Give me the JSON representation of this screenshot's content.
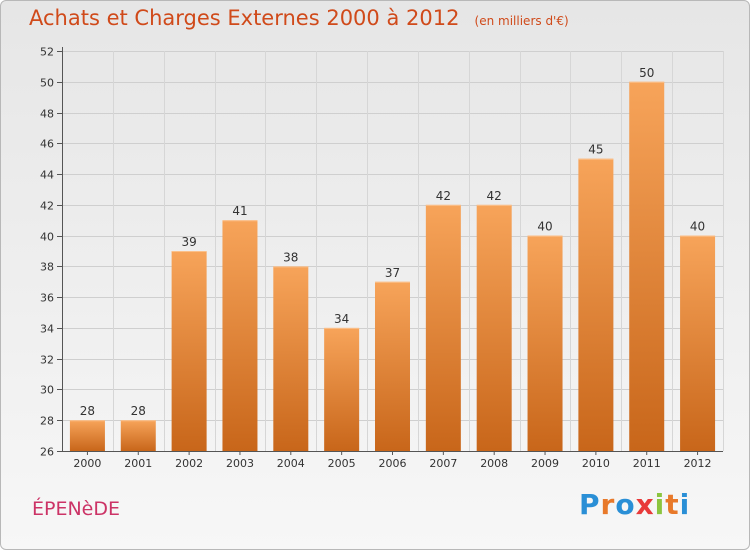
{
  "header": {
    "title": "Achats et Charges Externes 2000 à 2012",
    "unit": "(en milliers d'€)"
  },
  "footer": {
    "place": "ÉPENèDE",
    "brand": "Proxiti",
    "brand_colors": [
      "#2a8fd6",
      "#e8792a",
      "#2a8fd6",
      "#e83a3a",
      "#8bc53f",
      "#e8792a",
      "#2a8fd6"
    ]
  },
  "colors": {
    "bar_top": "#f7a45a",
    "bar_bottom": "#c8661a",
    "title": "#d04a1a",
    "place": "#cc3366"
  },
  "chart_data": {
    "type": "bar",
    "title": "Achats et Charges Externes 2000 à 2012",
    "subtitle": "(en milliers d'€)",
    "categories": [
      "2000",
      "2001",
      "2002",
      "2003",
      "2004",
      "2005",
      "2006",
      "2007",
      "2008",
      "2009",
      "2010",
      "2011",
      "2012"
    ],
    "values": [
      28,
      28,
      39,
      41,
      38,
      34,
      37,
      42,
      42,
      40,
      45,
      50,
      40
    ],
    "xlabel": "",
    "ylabel": "",
    "ylim": [
      26,
      52
    ],
    "yticks": [
      26,
      28,
      30,
      32,
      34,
      36,
      38,
      40,
      42,
      44,
      46,
      48,
      50,
      52
    ],
    "grid": true,
    "data_labels": true
  }
}
